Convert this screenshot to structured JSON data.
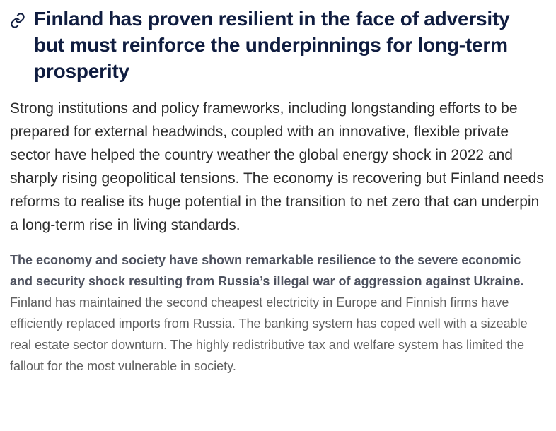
{
  "section": {
    "anchor_icon": "link-icon",
    "title": "Finland has proven resilient in the face of adversity but must reinforce the underpinnings for long-term prosperity",
    "summary": "Strong institutions and policy frameworks, including longstanding efforts to be prepared for external headwinds, coupled with an innovative, flexible private sector have helped the country weather the global energy shock in 2022 and sharply rising geopolitical tensions. The economy is recovering but Finland needs reforms to realise its huge potential in the transition to net zero that can underpin a long-term rise in living standards.",
    "paragraph": {
      "lead": "The economy and society have shown remarkable resilience to the severe economic and security shock resulting from Russia’s illegal war of aggression against Ukraine.",
      "body": " Finland has maintained the second cheapest electricity in Europe and Finnish firms have efficiently replaced imports from Russia. The banking system has coped well with a sizeable real estate sector downturn. The highly redistributive tax and welfare system has limited the fallout for the most vulnerable in society."
    }
  },
  "colors": {
    "heading": "#101d40",
    "summary_text": "#2d2d2d",
    "body_text": "#606060",
    "lead_text": "#4f5360"
  }
}
